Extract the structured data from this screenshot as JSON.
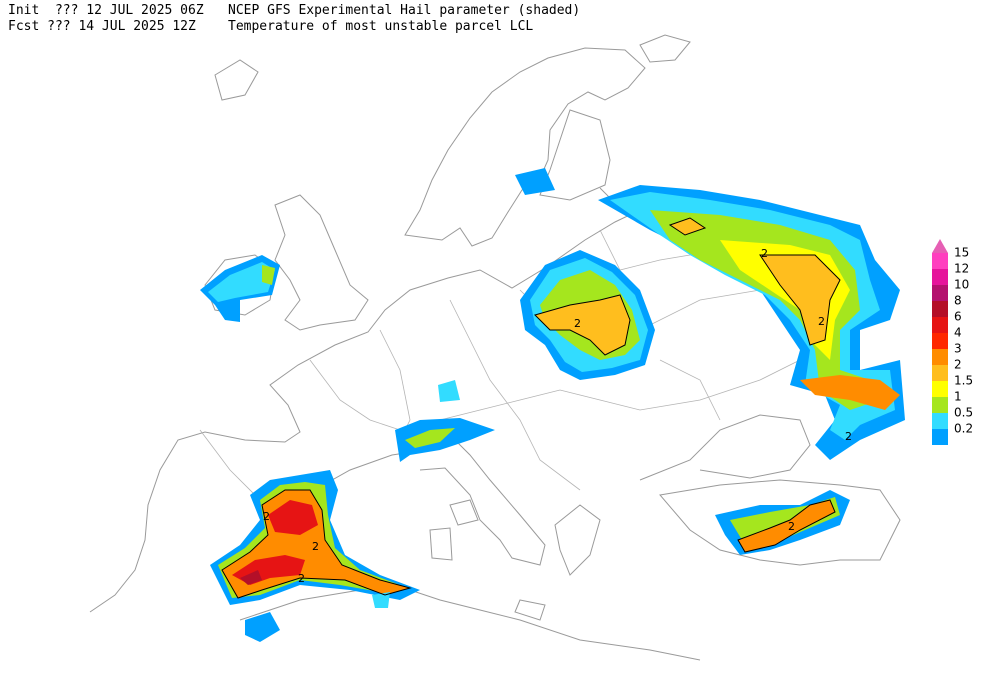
{
  "header": {
    "init_line": "Init  ??? 12 JUL 2025 06Z",
    "title": "NCEP GFS Experimental Hail parameter (shaded)",
    "fcst_line": "Fcst ??? 14 JUL 2025 12Z",
    "subtitle": "Temperature of most unstable parcel LCL"
  },
  "legend": {
    "items": [
      {
        "label": "15",
        "color": "#ff3fbf"
      },
      {
        "label": "12",
        "color": "#e6149b"
      },
      {
        "label": "10",
        "color": "#b4116e"
      },
      {
        "label": "8",
        "color": "#b40f28"
      },
      {
        "label": "6",
        "color": "#e61414"
      },
      {
        "label": "4",
        "color": "#ff2800"
      },
      {
        "label": "3",
        "color": "#ff8c00"
      },
      {
        "label": "2",
        "color": "#ffbe1e"
      },
      {
        "label": "1.5",
        "color": "#ffff00"
      },
      {
        "label": "1",
        "color": "#a5e61e"
      },
      {
        "label": "0.5",
        "color": "#32dcff"
      },
      {
        "label": "0.2",
        "color": "#00a0ff"
      }
    ],
    "top_arrow_color": "#e65fb4"
  },
  "map": {
    "contour_labels": [
      "2",
      "2",
      "2",
      "2",
      "2",
      "2",
      "2",
      "2"
    ]
  }
}
